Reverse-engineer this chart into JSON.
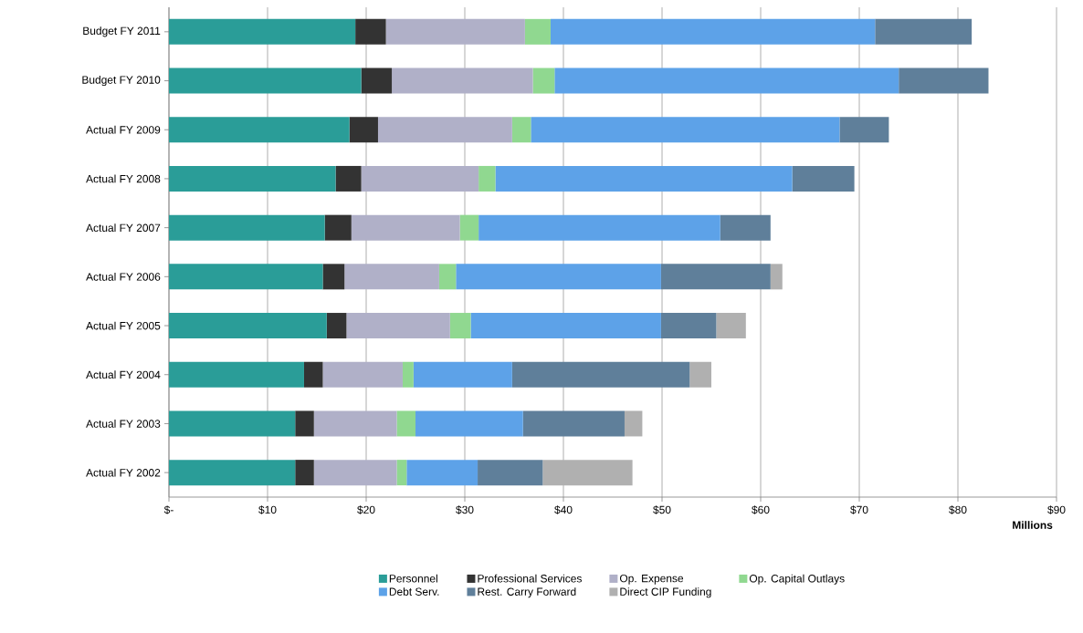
{
  "chart_data": {
    "type": "bar",
    "orientation": "horizontal",
    "stacked": true,
    "xlabel": "Millions",
    "categories": [
      "Budget FY 2011",
      "Budget FY 2010",
      "Actual FY 2009",
      "Actual FY 2008",
      "Actual FY 2007",
      "Actual FY 2006",
      "Actual FY 2005",
      "Actual FY 2004",
      "Actual FY 2003",
      "Actual FY 2002"
    ],
    "series": [
      {
        "name": "Personnel",
        "color": "#2a9d98",
        "values": [
          18.9,
          19.5,
          18.3,
          16.9,
          15.8,
          15.6,
          16.0,
          13.7,
          12.8,
          12.8
        ]
      },
      {
        "name": "Professional Services",
        "color": "#333333",
        "values": [
          3.1,
          3.1,
          2.9,
          2.6,
          2.7,
          2.2,
          2.0,
          1.9,
          1.9,
          1.9
        ]
      },
      {
        "name": "Op. Expense",
        "color": "#b0b0c8",
        "values": [
          14.1,
          14.3,
          13.6,
          11.9,
          11.0,
          9.6,
          10.5,
          8.1,
          8.4,
          8.4
        ]
      },
      {
        "name": "Op. Capital Outlays",
        "color": "#90d890",
        "values": [
          2.6,
          2.2,
          1.9,
          1.7,
          1.9,
          1.7,
          2.1,
          1.1,
          1.9,
          1.0
        ]
      },
      {
        "name": "Debt Serv.",
        "color": "#5da2e8",
        "values": [
          32.9,
          34.9,
          31.3,
          30.1,
          24.5,
          20.8,
          19.3,
          10.0,
          10.9,
          7.2
        ]
      },
      {
        "name": "Rest. Carry Forward",
        "color": "#5f7f9a",
        "values": [
          9.8,
          9.1,
          5.0,
          6.3,
          5.1,
          11.1,
          5.6,
          18.0,
          10.3,
          6.6
        ]
      },
      {
        "name": "Direct CIP Funding",
        "color": "#b0b0b0",
        "values": [
          null,
          null,
          null,
          null,
          null,
          1.2,
          3.0,
          2.2,
          1.8,
          9.1
        ]
      }
    ],
    "xlim": [
      0,
      90
    ],
    "xticks": [
      {
        "value": 0,
        "label": "$-"
      },
      {
        "value": 10,
        "label": "$10"
      },
      {
        "value": 20,
        "label": "$20"
      },
      {
        "value": 30,
        "label": "$30"
      },
      {
        "value": 40,
        "label": "$40"
      },
      {
        "value": 50,
        "label": "$50"
      },
      {
        "value": 60,
        "label": "$60"
      },
      {
        "value": 70,
        "label": "$70"
      },
      {
        "value": 80,
        "label": "$80"
      },
      {
        "value": 90,
        "label": "$90"
      }
    ],
    "grid": "x",
    "legend": "bottom"
  }
}
